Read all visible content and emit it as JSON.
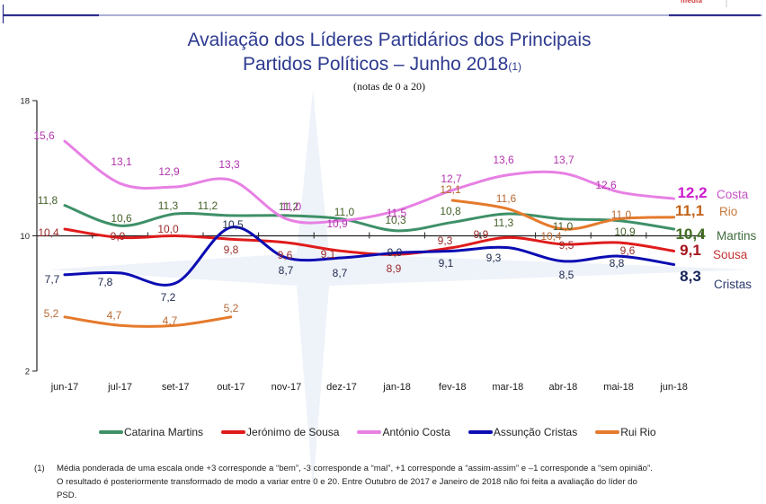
{
  "header": {
    "logo_text": "media",
    "rule_color": "#2b2f8a"
  },
  "title": {
    "line1": "Avaliação dos Líderes Partidários dos Principais",
    "line2": "Partidos Políticos – Junho 2018",
    "line2_note": "(1)",
    "subtitle": "(notas de 0 a 20)"
  },
  "chart_data": {
    "type": "line",
    "title": "Avaliação dos Líderes Partidários dos Principais Partidos Políticos – Junho 2018",
    "subtitle": "(notas de 0 a 20)",
    "xlabel": "",
    "ylabel": "",
    "categories": [
      "jun-17",
      "jul-17",
      "set-17",
      "out-17",
      "nov-17",
      "dez-17",
      "jan-18",
      "fev-18",
      "mar-18",
      "abr-18",
      "mai-18",
      "jun-18"
    ],
    "ylim": [
      2,
      18
    ],
    "yticks": [
      2,
      10,
      18
    ],
    "x_axis_crosses_at": 10,
    "grid": false,
    "legend": "bottom",
    "decimal_separator": ",",
    "series": [
      {
        "name": "Catarina Martins",
        "end_label": "Martins",
        "line_color": "#3e9068",
        "label_color": "#44612a",
        "end_value_color": "#3e6b1e",
        "end_name_color": "#3f6b3f",
        "values": [
          11.8,
          10.6,
          11.3,
          11.2,
          11.2,
          11.0,
          10.3,
          10.8,
          11.3,
          11.0,
          10.9,
          10.4
        ]
      },
      {
        "name": "Jerónimo de Sousa",
        "end_label": "Sousa",
        "line_color": "#e01b1b",
        "label_color": "#9b2a2a",
        "end_value_color": "#a4121a",
        "end_name_color": "#c43434",
        "values": [
          10.4,
          9.9,
          10.0,
          9.8,
          9.6,
          9.1,
          8.9,
          9.3,
          9.9,
          9.5,
          9.6,
          9.1
        ]
      },
      {
        "name": "António Costa",
        "end_label": "Costa",
        "line_color": "#e780e4",
        "label_color": "#b234ae",
        "end_value_color": "#cc1ccc",
        "end_name_color": "#c453c4",
        "values": [
          15.6,
          13.1,
          12.9,
          13.3,
          11.0,
          10.9,
          11.5,
          12.7,
          13.6,
          13.7,
          12.6,
          12.2
        ]
      },
      {
        "name": "Assunção Cristas",
        "end_label": "Cristas",
        "line_color": "#0b0cb2",
        "label_color": "#1e2a4e",
        "end_value_color": "#16245a",
        "end_name_color": "#2b3a6e",
        "values": [
          7.7,
          7.8,
          7.2,
          10.5,
          8.7,
          8.7,
          9.0,
          9.1,
          9.3,
          8.5,
          8.8,
          8.3
        ]
      },
      {
        "name": "Rui Rio",
        "end_label": "Rio",
        "line_color": "#e57a2c",
        "label_color": "#b76a35",
        "end_value_color": "#c2631a",
        "end_name_color": "#c77a3c",
        "values": [
          5.2,
          4.7,
          4.7,
          5.2,
          null,
          null,
          null,
          12.1,
          11.6,
          10.4,
          11.0,
          11.1
        ]
      }
    ]
  },
  "footnote": {
    "marker": "(1)",
    "lines": [
      "Média ponderada de uma escala onde +3 corresponde a “bem”, -3 corresponde a “mal”, +1 corresponde a “assim-assim” e –1 corresponde a “sem opinião”.",
      "O resultado é posteriormente transformado de modo a variar entre 0 e 20. Entre Outubro de 2017 e Janeiro de 2018 não foi feita a avaliação do líder do",
      "PSD."
    ]
  }
}
